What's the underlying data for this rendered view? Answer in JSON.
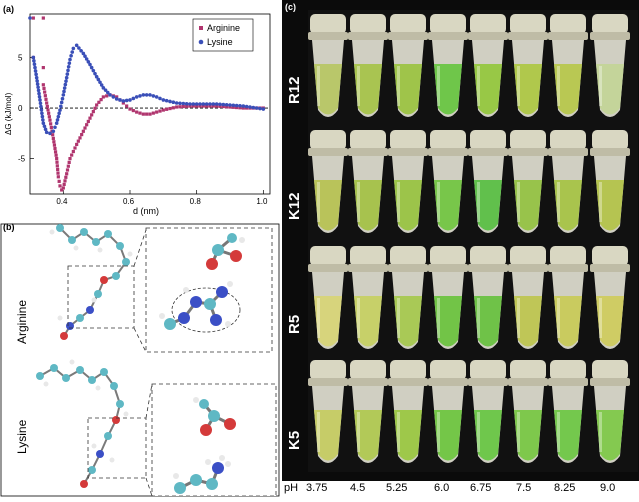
{
  "panel_a": {
    "label": "(a)",
    "chart_data": {
      "type": "line",
      "xlabel": "d (nm)",
      "ylabel": "ΔG (kJ/mol)",
      "xlim": [
        0.3,
        1.02
      ],
      "ylim": [
        -8.5,
        9.3
      ],
      "xticks": [
        "0.4",
        "0.6",
        "0.8",
        "1.0"
      ],
      "yticks": [
        "-5",
        "0",
        "5"
      ],
      "legend_position": "top-right",
      "series": [
        {
          "name": "Arginine",
          "color": "#b0356e",
          "marker": "square",
          "points": [
            [
              0.31,
              8.9
            ],
            [
              0.34,
              8.9
            ],
            [
              0.31,
              5.0
            ],
            [
              0.34,
              4.0
            ],
            [
              0.34,
              2.3
            ],
            [
              0.35,
              0.5
            ],
            [
              0.36,
              -1.2
            ],
            [
              0.37,
              -3.0
            ],
            [
              0.38,
              -5.0
            ],
            [
              0.385,
              -6.8
            ],
            [
              0.39,
              -7.7
            ],
            [
              0.395,
              -8.1
            ],
            [
              0.4,
              -7.9
            ],
            [
              0.41,
              -6.5
            ],
            [
              0.42,
              -5.0
            ],
            [
              0.44,
              -3.6
            ],
            [
              0.46,
              -2.3
            ],
            [
              0.48,
              -1.0
            ],
            [
              0.5,
              0.3
            ],
            [
              0.52,
              1.1
            ],
            [
              0.54,
              1.3
            ],
            [
              0.56,
              1.1
            ],
            [
              0.58,
              0.5
            ],
            [
              0.6,
              -0.1
            ],
            [
              0.62,
              -0.4
            ],
            [
              0.64,
              -0.6
            ],
            [
              0.66,
              -0.6
            ],
            [
              0.68,
              -0.4
            ],
            [
              0.7,
              -0.2
            ],
            [
              0.74,
              0.1
            ],
            [
              0.78,
              0.2
            ],
            [
              0.82,
              0.2
            ],
            [
              0.86,
              0.2
            ],
            [
              0.9,
              0.1
            ],
            [
              0.94,
              0.0
            ],
            [
              0.98,
              0.0
            ],
            [
              1.0,
              0.0
            ]
          ]
        },
        {
          "name": "Lysine",
          "color": "#3a4fb8",
          "marker": "circle",
          "points": [
            [
              0.3,
              8.9
            ],
            [
              0.31,
              5.0
            ],
            [
              0.32,
              3.0
            ],
            [
              0.33,
              0.8
            ],
            [
              0.34,
              -1.5
            ],
            [
              0.35,
              -2.4
            ],
            [
              0.36,
              -2.5
            ],
            [
              0.37,
              -2.3
            ],
            [
              0.38,
              -1.5
            ],
            [
              0.39,
              -0.2
            ],
            [
              0.4,
              1.3
            ],
            [
              0.41,
              3.0
            ],
            [
              0.42,
              4.8
            ],
            [
              0.43,
              5.9
            ],
            [
              0.44,
              6.2
            ],
            [
              0.46,
              5.4
            ],
            [
              0.48,
              4.3
            ],
            [
              0.5,
              3.1
            ],
            [
              0.52,
              2.0
            ],
            [
              0.54,
              1.3
            ],
            [
              0.56,
              0.9
            ],
            [
              0.58,
              0.7
            ],
            [
              0.6,
              0.8
            ],
            [
              0.62,
              1.1
            ],
            [
              0.64,
              1.3
            ],
            [
              0.66,
              1.3
            ],
            [
              0.68,
              1.1
            ],
            [
              0.7,
              0.8
            ],
            [
              0.74,
              0.5
            ],
            [
              0.78,
              0.4
            ],
            [
              0.82,
              0.4
            ],
            [
              0.86,
              0.4
            ],
            [
              0.9,
              0.3
            ],
            [
              0.94,
              0.2
            ],
            [
              0.98,
              0.0
            ],
            [
              1.0,
              -0.1
            ]
          ]
        }
      ]
    }
  },
  "panel_b": {
    "label": "(b)",
    "top_label": "Arginine",
    "bottom_label": "Lysine"
  },
  "panel_c": {
    "label": "(c)",
    "rows": [
      "R12",
      "K12",
      "R5",
      "K5"
    ],
    "ph_prefix": "pH",
    "ph_values": [
      "3.75",
      "4.5",
      "5.25",
      "6.0",
      "6.75",
      "7.5",
      "8.25",
      "9.0"
    ],
    "tube_colors": [
      [
        "#b9c76a",
        "#a9c451",
        "#9fc44a",
        "#6fc64a",
        "#98c846",
        "#b0c84c",
        "#b9c853",
        "#c4d49a"
      ],
      [
        "#b9c35a",
        "#a7c24e",
        "#9cc44a",
        "#78c64a",
        "#61c04c",
        "#98c34b",
        "#a9c44d",
        "#b5c451"
      ],
      [
        "#d7d47c",
        "#c7d069",
        "#a9c956",
        "#72c447",
        "#6fc248",
        "#bfc657",
        "#c9cb5f",
        "#cfcc64"
      ],
      [
        "#c6cc68",
        "#b2c958",
        "#9ec84a",
        "#74c648",
        "#6fc74c",
        "#7ec84c",
        "#74c84d",
        "#84c950"
      ]
    ]
  }
}
